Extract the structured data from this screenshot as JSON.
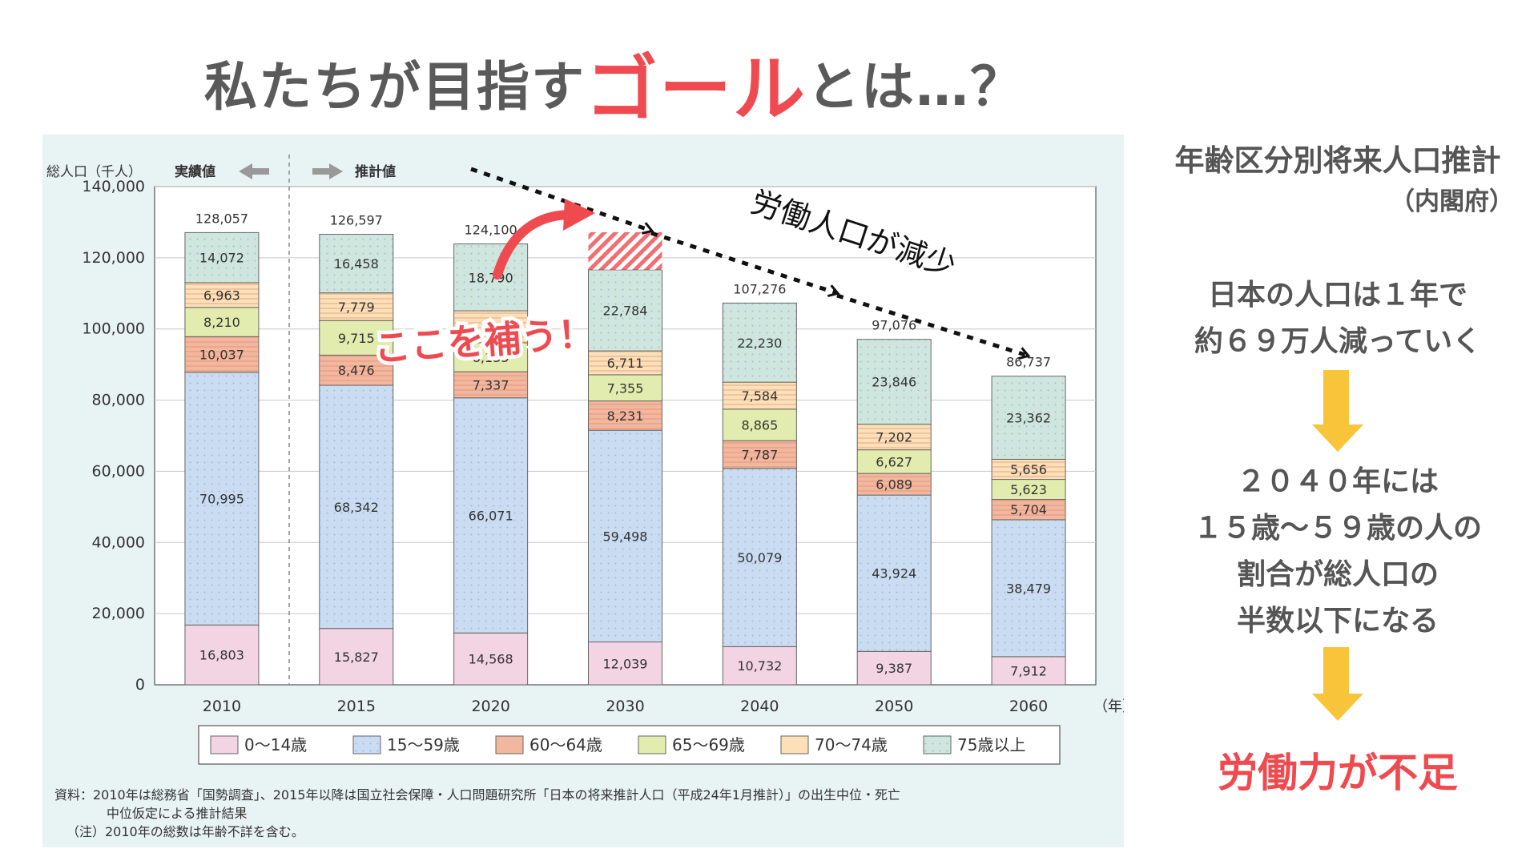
{
  "title": {
    "part1": "私たちが目指す",
    "highlight": "ゴール",
    "part2": "とは…？"
  },
  "colors": {
    "accent_red": "#ee4a4f",
    "arrow_yellow": "#f8c43a",
    "panel_bg": "#e8f3f4"
  },
  "side": {
    "title": "年齢区分別将来人口推計",
    "source": "（内閣府）",
    "fact_line1": "日本の人口は１年で",
    "fact_line2": "約６９万人減っていく",
    "y2040_line1": "２０４０年には",
    "y2040_line2": "１５歳〜５９歳の人の",
    "y2040_line3": "割合が総人口の",
    "y2040_line4": "半数以下になる",
    "result": "労働力が不足"
  },
  "chart_data": {
    "type": "bar",
    "stacked": true,
    "categories": [
      "2010",
      "2015",
      "2020",
      "2030",
      "2040",
      "2050",
      "2060"
    ],
    "xlabel_unit": "（年）",
    "ylabel": "総人口（千人）",
    "ylim": [
      0,
      140000
    ],
    "yticks": [
      "0",
      "20,000",
      "40,000",
      "60,000",
      "80,000",
      "100,000",
      "120,000",
      "140,000"
    ],
    "actual_label": "実績値",
    "estimate_label": "推計値",
    "totals": [
      "128,057",
      "126,597",
      "124,100",
      "",
      "107,276",
      "97,076",
      "86,737"
    ],
    "series": [
      {
        "name": "0〜14歳",
        "color": "#f3d4e2",
        "values": [
          16803,
          15827,
          14568,
          12039,
          10732,
          9387,
          7912
        ],
        "labels": [
          "16,803",
          "15,827",
          "14,568",
          "12,039",
          "10,732",
          "9,387",
          "7,912"
        ]
      },
      {
        "name": "15〜59歳",
        "color": "#c9dcf2",
        "values": [
          70995,
          68342,
          66071,
          59498,
          50079,
          43924,
          38479
        ],
        "labels": [
          "70,995",
          "68,342",
          "66,071",
          "59,498",
          "50,079",
          "43,924",
          "38,479"
        ]
      },
      {
        "name": "60〜64歳",
        "color": "#f2b89f",
        "values": [
          10037,
          8476,
          7337,
          8231,
          7787,
          6089,
          5704
        ],
        "labels": [
          "10,037",
          "8,476",
          "7,337",
          "8,231",
          "7,787",
          "6,089",
          "5,704"
        ]
      },
      {
        "name": "65〜69歳",
        "color": "#e2ecae",
        "values": [
          8210,
          9715,
          8135,
          7355,
          8865,
          6627,
          5623
        ],
        "labels": [
          "8,210",
          "9,715",
          "8,135",
          "7,355",
          "8,865",
          "6,627",
          "5,623"
        ]
      },
      {
        "name": "70〜74歳",
        "color": "#fbe0b8",
        "values": [
          6963,
          7779,
          9000,
          6711,
          7584,
          7202,
          5656
        ],
        "labels": [
          "6,963",
          "7,779",
          "",
          "6,711",
          "7,584",
          "7,202",
          "5,656"
        ]
      },
      {
        "name": "75歳以上",
        "color": "#cfe6de",
        "values": [
          14072,
          16458,
          18790,
          22784,
          22230,
          23846,
          23362
        ],
        "labels": [
          "14,072",
          "16,458",
          "18,790",
          "22,784",
          "22,230",
          "23,846",
          "23,362"
        ]
      }
    ],
    "gap_bar": {
      "category": "2030",
      "from": 116618,
      "to": 127200
    },
    "annotations": {
      "trend": "労働人口が減少",
      "fill": "ここを補う！"
    },
    "notes": [
      "資料：2010年は総務省「国勢調査」、2015年以降は国立社会保障・人口問題研究所「日本の将来推計人口（平成24年1月推計）」の出生中位・死亡",
      "中位仮定による推計結果",
      "（注）2010年の総数は年齢不詳を含む。"
    ]
  }
}
